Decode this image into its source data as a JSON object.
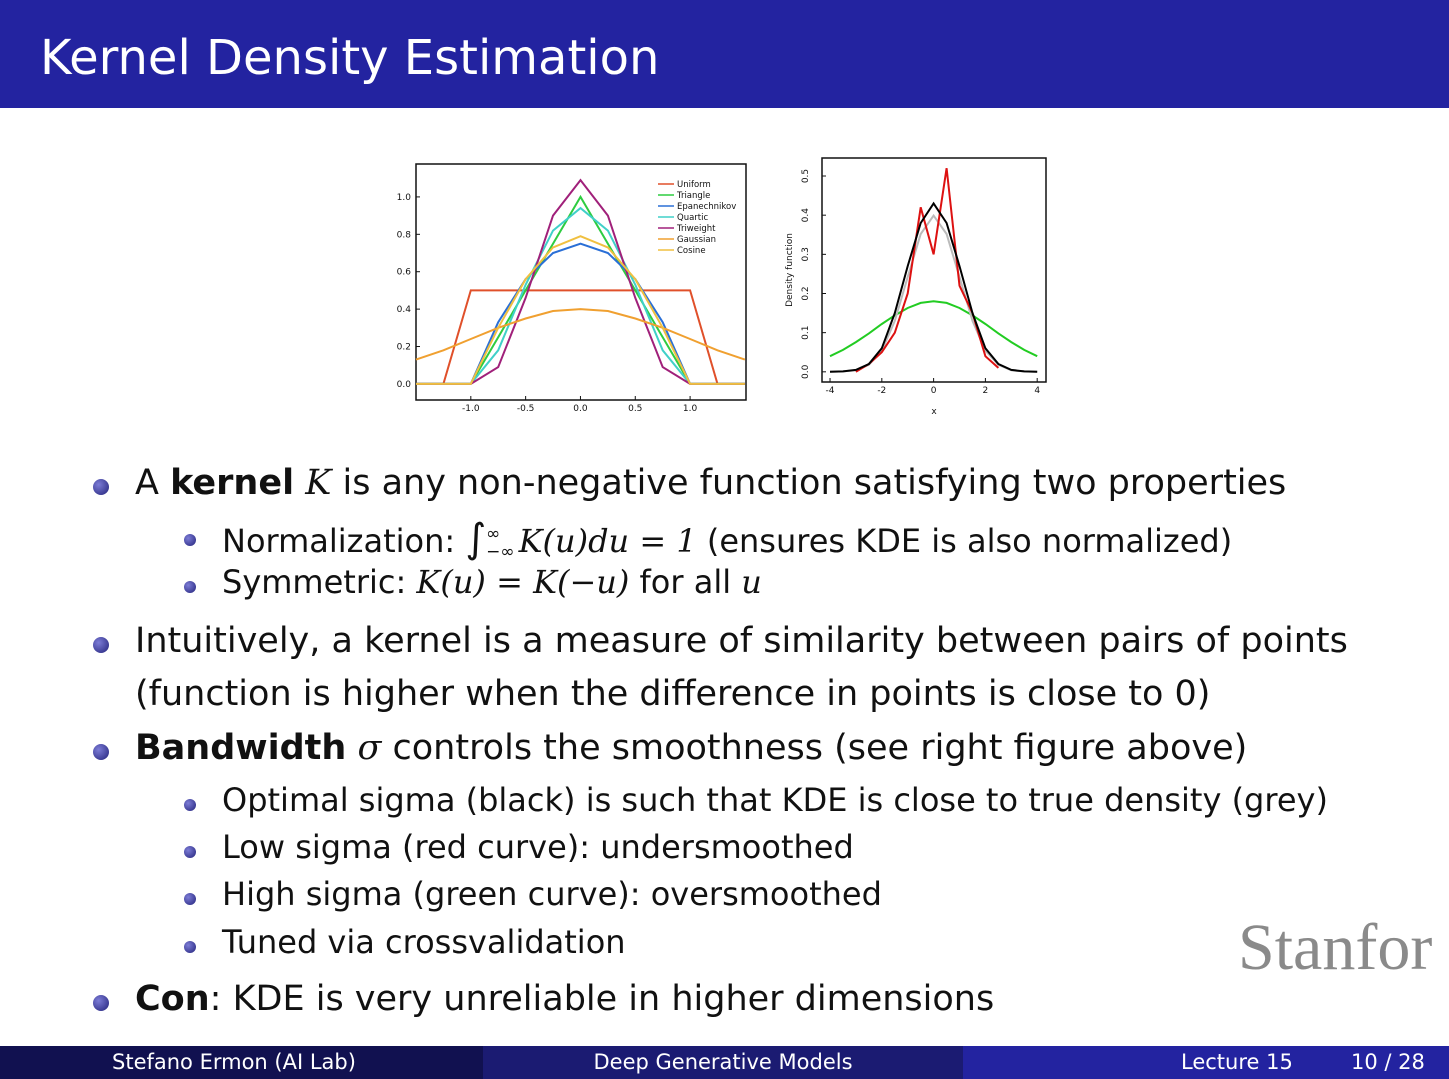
{
  "header": {
    "title": "Kernel Density Estimation"
  },
  "chart_data": [
    {
      "type": "line",
      "x": [
        -1.5,
        -1.25,
        -1,
        -0.75,
        -0.5,
        -0.25,
        0,
        0.25,
        0.5,
        0.75,
        1,
        1.25,
        1.5
      ],
      "xlim": [
        -1.5,
        1.51
      ],
      "xticks": [
        {
          "value": -1,
          "label": "-1.0"
        },
        {
          "value": -0.5,
          "label": "-0.5"
        },
        {
          "value": 0,
          "label": "0.0"
        },
        {
          "value": 0.5,
          "label": "0.5"
        },
        {
          "value": 1,
          "label": "1.0"
        }
      ],
      "ylim": [
        -0.086,
        1.176
      ],
      "yticks": [
        {
          "value": 0,
          "label": "0.0"
        },
        {
          "value": 0.2,
          "label": "0.2"
        },
        {
          "value": 0.4,
          "label": "0.4"
        },
        {
          "value": 0.6,
          "label": "0.6"
        },
        {
          "value": 0.8,
          "label": "0.8"
        },
        {
          "value": 1,
          "label": "1.0"
        }
      ],
      "legend": "upper right",
      "series": [
        {
          "name": "Uniform",
          "color": "#e0502a",
          "values": [
            0,
            0,
            0.5,
            0.5,
            0.5,
            0.5,
            0.5,
            0.5,
            0.5,
            0.5,
            0.5,
            0,
            0
          ]
        },
        {
          "name": "Triangle",
          "color": "#2ecc40",
          "values": [
            0,
            0,
            0,
            0.25,
            0.5,
            0.75,
            1,
            0.75,
            0.5,
            0.25,
            0,
            0,
            0
          ]
        },
        {
          "name": "Epanechnikov",
          "color": "#2a6fd6",
          "values": [
            0,
            0,
            0,
            0.33,
            0.56,
            0.7,
            0.75,
            0.7,
            0.56,
            0.33,
            0,
            0,
            0
          ]
        },
        {
          "name": "Quartic",
          "color": "#40d0c8",
          "values": [
            0,
            0,
            0,
            0.18,
            0.53,
            0.82,
            0.94,
            0.82,
            0.53,
            0.18,
            0,
            0,
            0
          ]
        },
        {
          "name": "Triweight",
          "color": "#a0207a",
          "values": [
            0,
            0,
            0,
            0.09,
            0.46,
            0.9,
            1.09,
            0.9,
            0.46,
            0.09,
            0,
            0,
            0
          ]
        },
        {
          "name": "Gaussian",
          "color": "#f0a030",
          "values": [
            0.13,
            0.18,
            0.24,
            0.3,
            0.35,
            0.39,
            0.4,
            0.39,
            0.35,
            0.3,
            0.24,
            0.18,
            0.13
          ]
        },
        {
          "name": "Cosine",
          "color": "#f0c040",
          "values": [
            0,
            0,
            0,
            0.3,
            0.56,
            0.73,
            0.79,
            0.73,
            0.56,
            0.3,
            0,
            0,
            0
          ]
        }
      ]
    },
    {
      "type": "line",
      "x": [
        -4,
        -3.5,
        -3,
        -2.5,
        -2,
        -1.5,
        -1,
        -0.5,
        0,
        0.5,
        1,
        1.5,
        2,
        2.5,
        3,
        3.5,
        4
      ],
      "x_label": "x",
      "y_label": "Density function",
      "xlim": [
        -4.31,
        4.34
      ],
      "xticks": [
        -4,
        -2,
        0,
        2,
        4
      ],
      "ylim": [
        -0.026,
        0.546
      ],
      "yticks": [
        {
          "value": 0,
          "label": "0.0"
        },
        {
          "value": 0.1,
          "label": "0.1"
        },
        {
          "value": 0.2,
          "label": "0.2"
        },
        {
          "value": 0.3,
          "label": "0.3"
        },
        {
          "value": 0.4,
          "label": "0.4"
        },
        {
          "value": 0.5,
          "label": "0.5"
        }
      ],
      "series": [
        {
          "color": "#22cc22",
          "values": [
            0.04,
            0.056,
            0.076,
            0.098,
            0.122,
            0.144,
            0.163,
            0.176,
            0.18,
            0.176,
            0.163,
            0.144,
            0.122,
            0.098,
            0.076,
            0.056,
            0.04
          ]
        },
        {
          "color": "#bbbbbb",
          "values": [
            0,
            0.001,
            0.004,
            0.018,
            0.054,
            0.13,
            0.242,
            0.352,
            0.399,
            0.352,
            0.242,
            0.13,
            0.054,
            0.018,
            0.004,
            0.001,
            0
          ]
        },
        {
          "color": "#dd1111",
          "values": [
            null,
            null,
            0,
            0.02,
            0.05,
            0.1,
            0.2,
            0.42,
            0.3,
            0.52,
            0.22,
            0.15,
            0.04,
            0.01,
            null,
            null,
            null
          ]
        },
        {
          "color": "#000000",
          "values": [
            0,
            0.001,
            0.005,
            0.02,
            0.06,
            0.15,
            0.27,
            0.38,
            0.43,
            0.38,
            0.27,
            0.15,
            0.06,
            0.02,
            0.005,
            0.001,
            0
          ]
        }
      ]
    }
  ],
  "bullets": [
    {
      "parts": [
        "A ",
        "kernel",
        " ",
        "K",
        " is any non-negative function satisfying two properties"
      ],
      "sub": [
        {
          "parts": [
            "Normalization: ",
            "∫",
            "∞",
            "−∞",
            "K(u)du = 1",
            "(ensures KDE is also normalized)"
          ]
        },
        {
          "parts": [
            "Symmetric: ",
            "K(u) = K(−u)",
            " for all ",
            "u"
          ]
        }
      ]
    },
    {
      "parts": [
        "Intuitively, a kernel is a measure of similarity between pairs of points",
        "(function is higher when the difference in points is close to 0)"
      ]
    },
    {
      "parts": [
        "Bandwidth",
        "σ",
        "controls the smoothness (see right figure above)"
      ],
      "sub": [
        {
          "parts": [
            "Optimal sigma (black) is such that KDE is close to true density (grey)"
          ]
        },
        {
          "parts": [
            "Low sigma (red curve): undersmoothed"
          ]
        },
        {
          "parts": [
            "High sigma (green curve): oversmoothed"
          ]
        },
        {
          "parts": [
            "Tuned via crossvalidation"
          ]
        }
      ]
    },
    {
      "parts": [
        "Con",
        ": KDE is very unreliable in higher dimensions"
      ]
    }
  ],
  "logo": "Stanfor",
  "footer": {
    "author": "Stefano Ermon (AI Lab)",
    "course": "Deep Generative Models",
    "lecture": "Lecture 15",
    "page": "10 / 28"
  }
}
